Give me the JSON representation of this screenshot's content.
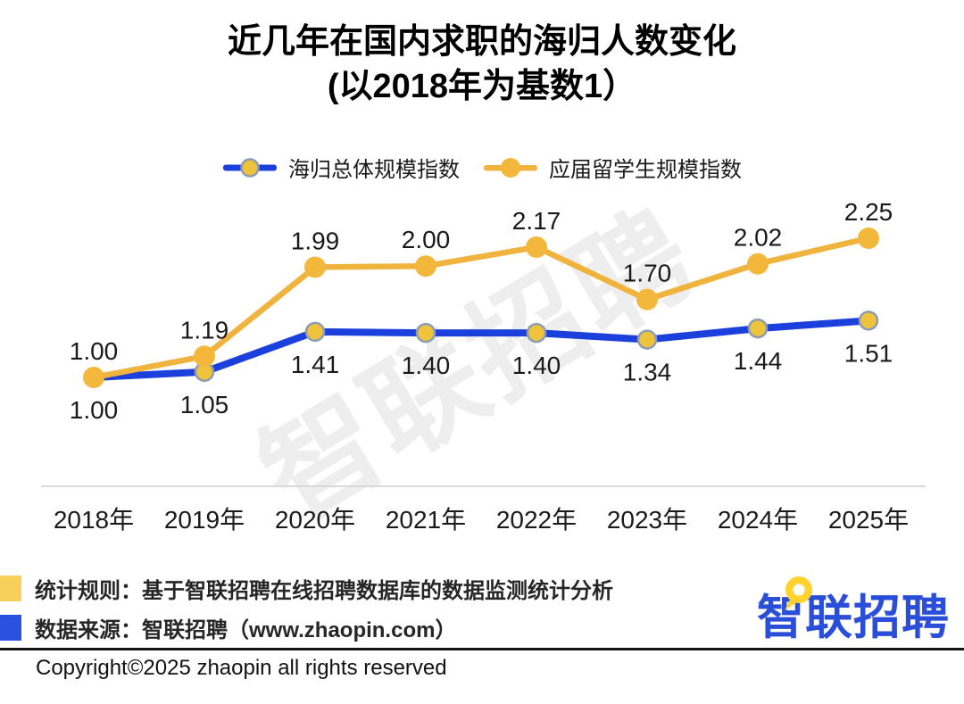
{
  "chart_data": {
    "type": "line",
    "title": "近几年在国内求职的海归人数变化",
    "subtitle": "(以2018年为基数1）",
    "categories": [
      "2018年",
      "2019年",
      "2020年",
      "2021年",
      "2022年",
      "2023年",
      "2024年",
      "2025年"
    ],
    "series": [
      {
        "name": "海归总体规模指数",
        "color": "#1C40DC",
        "marker_fill": "#F0C33C",
        "marker_stroke": "#8C9CB4",
        "label_position": "below",
        "values": [
          1.0,
          1.05,
          1.41,
          1.4,
          1.4,
          1.34,
          1.44,
          1.51
        ]
      },
      {
        "name": "应届留学生规模指数",
        "color": "#F0B43E",
        "marker_fill": "#F3B73B",
        "marker_stroke": "none",
        "label_position": "above",
        "values": [
          1.0,
          1.19,
          1.99,
          2.0,
          2.17,
          1.7,
          2.02,
          2.25
        ]
      }
    ],
    "ylim": [
      1.0,
      2.25
    ],
    "xlabel": "",
    "ylabel": "",
    "grid": false,
    "legend_position": "top",
    "value_labels": true,
    "value_decimals": 2,
    "axis_line_color": "#D9D9D9",
    "label_color": "#1a1a1a"
  },
  "watermark": "智联招聘",
  "footnotes": [
    {
      "swatch_color": "#F7CF5B",
      "text": "统计规则：基于智联招聘在线招聘数据库的数据监测统计分析"
    },
    {
      "swatch_color": "#2A52E0",
      "text": "数据来源：智联招聘（www.zhaopin.com）"
    }
  ],
  "logo_text": "智联招聘",
  "copyright": "Copyright©2025 zhaopin all rights reserved"
}
